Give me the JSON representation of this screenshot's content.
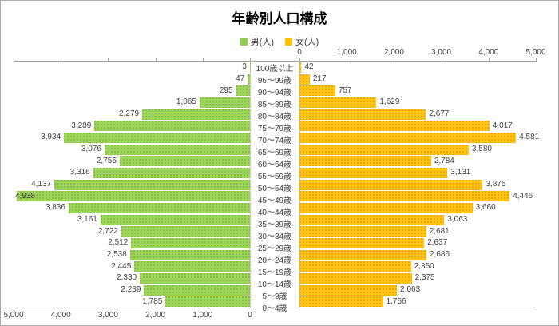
{
  "title": "年齢別人口構成",
  "legend": [
    {
      "label": "男(人)",
      "color": "#8fce4e"
    },
    {
      "label": "女(人)",
      "color": "#ffc000"
    }
  ],
  "chart_data": {
    "type": "bar",
    "subtype": "population-pyramid",
    "title": "年齢別人口構成",
    "grid": false,
    "legend_position": "top-center",
    "categories": [
      "100歳以上",
      "95〜99歳",
      "90〜94歳",
      "85〜89歳",
      "80〜84歳",
      "75〜79歳",
      "70〜74歳",
      "65〜69歳",
      "60〜64歳",
      "55〜59歳",
      "50〜54歳",
      "45〜49歳",
      "40〜44歳",
      "35〜39歳",
      "30〜34歳",
      "25〜29歳",
      "20〜24歳",
      "15〜19歳",
      "10〜14歳",
      "5〜9歳",
      "0〜4歳"
    ],
    "series": [
      {
        "name": "男(人)",
        "side": "left",
        "color": "#8fce4e",
        "values": [
          3,
          47,
          295,
          1065,
          2279,
          3289,
          3934,
          3076,
          2755,
          3316,
          4137,
          4938,
          3836,
          3161,
          2722,
          2512,
          2538,
          2445,
          2330,
          2239,
          1785
        ]
      },
      {
        "name": "女(人)",
        "side": "right",
        "color": "#ffc000",
        "values": [
          42,
          217,
          757,
          1629,
          2677,
          4017,
          4581,
          3580,
          2784,
          3131,
          3875,
          4446,
          3660,
          3063,
          2681,
          2637,
          2686,
          2360,
          2375,
          2063,
          1766
        ]
      }
    ],
    "axis": {
      "min": 0,
      "max": 5000,
      "step": 1000,
      "left_tick_labels": [
        "5,000",
        "4,000",
        "3,000",
        "2,000",
        "1,000",
        "0"
      ],
      "left_labels_position": "bottom",
      "right_tick_labels": [
        "0",
        "1,000",
        "2,000",
        "3,000",
        "4,000",
        "5,000"
      ],
      "right_labels_position": "top"
    },
    "data_labels": true
  }
}
